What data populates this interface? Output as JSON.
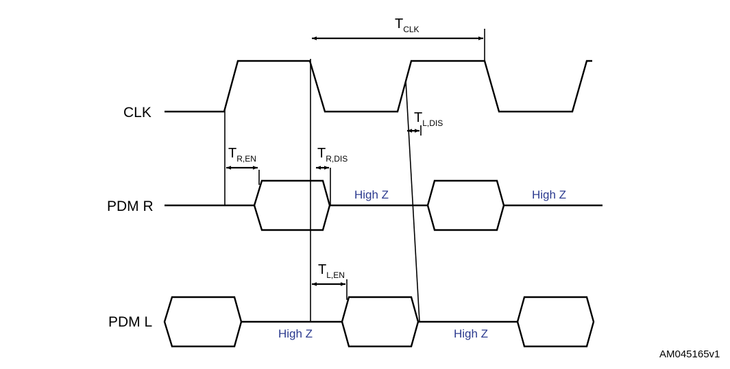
{
  "signals": {
    "clk": "CLK",
    "pdm_r": "PDM R",
    "pdm_l": "PDM L"
  },
  "timing": {
    "t_clk": {
      "main": "T",
      "sub": "CLK"
    },
    "t_r_en": {
      "main": "T",
      "sub": "R,EN"
    },
    "t_r_dis": {
      "main": "T",
      "sub": "R,DIS"
    },
    "t_l_dis": {
      "main": "T",
      "sub": "L,DIS"
    },
    "t_l_en": {
      "main": "T",
      "sub": "L,EN"
    }
  },
  "states": {
    "high_z": "High Z"
  },
  "colors": {
    "line": "#000000",
    "high_z_text": "#2b3a8f"
  },
  "figure_code": "AM045165v1"
}
